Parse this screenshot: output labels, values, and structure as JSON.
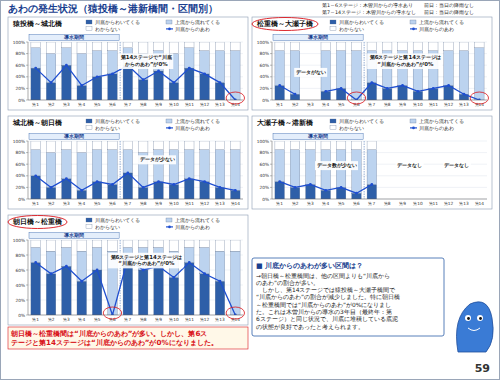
{
  "title": "あわの発生状況（猿投橋～港新橋間・区間別）",
  "legend_note": [
    "第1～6ステージ：木曽川からの導水あり",
    "前日：当日の降雨なし",
    "第7～14ステージ：木曽川からの導水なし",
    "前日：当日の降雨なし"
  ],
  "note": {
    "heading": "■ 川底からのあわが多い区間は？",
    "lines": [
      "→朝日橋～松重橋間は、他の区間よりも“川底から",
      "のあわ”の割合が多い。",
      "　しかし、第14ステージでは猿投橋～大瀬子橋間で",
      "“川底からのあわ”の割合が減少しました。特に朝日橋",
      "～松重橋間では“川底からのあわ”が0%になりまし",
      "た。これは木曽川からの導水の3年目（最終年：第",
      "6ステージ）と同じ状況で、川底に堆積している底泥",
      "の状態が良好であったと考えられます。"
    ]
  },
  "caption": [
    "朝日橋～松重橋間は“川底からのあわ”が多い。しかし、第6ス",
    "テージと第14ステージは“川底からのあわ”が0%になりました。"
  ],
  "page": "59",
  "chart_data": [
    {
      "type": "bar",
      "stacked": true,
      "grid": true,
      "title": "猿投橋～城北橋",
      "period": {
        "label": "導水期間",
        "from": "第1",
        "to": "第6"
      },
      "categories": [
        "第1",
        "第2",
        "第3",
        "第4",
        "第5",
        "第6",
        "第7",
        "第8",
        "第9",
        "第10",
        "第11",
        "第12",
        "第13",
        "第14"
      ],
      "ylim": [
        0,
        100
      ],
      "yticks": [
        {
          "value": 0,
          "label": "0%"
        },
        {
          "value": 20,
          "label": "20%"
        },
        {
          "value": 40,
          "label": "40%"
        },
        {
          "value": 60,
          "label": "60%"
        },
        {
          "value": 80,
          "label": "80%"
        },
        {
          "value": 100,
          "label": "100%"
        }
      ],
      "series": [
        {
          "name": "川底からわいてくる",
          "color": "#2e5fa8",
          "values": [
            55,
            30,
            60,
            25,
            40,
            45,
            60,
            35,
            50,
            30,
            55,
            45,
            30,
            0
          ]
        },
        {
          "name": "上流から流れてくる",
          "color": "#bcd3ef",
          "values": [
            35,
            50,
            30,
            55,
            45,
            40,
            30,
            45,
            35,
            50,
            35,
            40,
            55,
            85
          ]
        },
        {
          "name": "わからない",
          "color": "#ffffff",
          "values": [
            10,
            20,
            10,
            20,
            15,
            15,
            10,
            20,
            15,
            20,
            10,
            15,
            15,
            15
          ]
        },
        {
          "name": "川底からのあわ",
          "type": "line",
          "color": "#1f4fd0",
          "marker": "circle",
          "line_style": "solid",
          "values": [
            55,
            30,
            60,
            25,
            40,
            45,
            60,
            35,
            50,
            30,
            55,
            45,
            30,
            0
          ]
        }
      ],
      "annotations": [
        "第14ステージで“川底\nからのあわ”が0%"
      ]
    },
    {
      "type": "bar",
      "stacked": true,
      "grid": true,
      "title": "松重橋～大瀬子橋",
      "period": {
        "label": "導水期間",
        "from": "第1",
        "to": "第6"
      },
      "categories": [
        "第1",
        "第2",
        "第3",
        "第4",
        "第5",
        "第6",
        "第7",
        "第8",
        "第9",
        "第10",
        "第11",
        "第12",
        "第13",
        "第14"
      ],
      "ylim": [
        0,
        100
      ],
      "yticks": [
        {
          "value": 0,
          "label": "0%"
        },
        {
          "value": 20,
          "label": "20%"
        },
        {
          "value": 40,
          "label": "40%"
        },
        {
          "value": 60,
          "label": "60%"
        },
        {
          "value": 80,
          "label": "80%"
        },
        {
          "value": 100,
          "label": "100%"
        }
      ],
      "series": [
        {
          "name": "川底からわいてくる",
          "color": "#2e5fa8",
          "values": [
            25,
            10,
            null,
            15,
            20,
            0,
            30,
            20,
            25,
            15,
            20,
            25,
            10,
            0
          ]
        },
        {
          "name": "上流から流れてくる",
          "color": "#bcd3ef",
          "values": [
            60,
            75,
            null,
            70,
            65,
            85,
            55,
            65,
            60,
            70,
            65,
            60,
            75,
            90
          ]
        },
        {
          "name": "わからない",
          "color": "#ffffff",
          "values": [
            15,
            15,
            null,
            15,
            15,
            15,
            15,
            15,
            15,
            15,
            15,
            15,
            15,
            10
          ]
        },
        {
          "name": "川底からのあわ",
          "type": "line",
          "color": "#1f4fd0",
          "marker": "circle",
          "line_style": "solid",
          "values": [
            25,
            10,
            null,
            15,
            20,
            0,
            30,
            20,
            25,
            15,
            20,
            25,
            10,
            0
          ]
        }
      ],
      "annotations": [
        "データがない",
        "第6ステージと第14ステージは\n“川底からのあわ”が0%"
      ]
    },
    {
      "type": "bar",
      "stacked": true,
      "grid": true,
      "title": "城北橋～朝日橋",
      "period": {
        "label": "導水期間",
        "from": "第1",
        "to": "第6"
      },
      "categories": [
        "第1",
        "第2",
        "第3",
        "第4",
        "第5",
        "第6",
        "第7",
        "第8",
        "第9",
        "第10",
        "第11",
        "第12",
        "第13",
        "第14"
      ],
      "ylim": [
        0,
        100
      ],
      "yticks": [
        {
          "value": 0,
          "label": "0%"
        },
        {
          "value": 20,
          "label": "20%"
        },
        {
          "value": 40,
          "label": "40%"
        },
        {
          "value": 60,
          "label": "60%"
        },
        {
          "value": 80,
          "label": "80%"
        },
        {
          "value": 100,
          "label": "100%"
        }
      ],
      "series": [
        {
          "name": "川底からわいてくる",
          "color": "#2e5fa8",
          "values": [
            40,
            20,
            35,
            15,
            30,
            25,
            45,
            20,
            30,
            25,
            35,
            30,
            20,
            15
          ]
        },
        {
          "name": "上流から流れてくる",
          "color": "#bcd3ef",
          "values": [
            45,
            60,
            50,
            65,
            55,
            60,
            40,
            60,
            55,
            60,
            50,
            55,
            65,
            70
          ]
        },
        {
          "name": "わからない",
          "color": "#ffffff",
          "values": [
            15,
            20,
            15,
            20,
            15,
            15,
            15,
            20,
            15,
            15,
            15,
            15,
            15,
            15
          ]
        },
        {
          "name": "川底からのあわ",
          "type": "line",
          "color": "#1f4fd0",
          "marker": "circle",
          "line_style": "solid",
          "values": [
            40,
            20,
            35,
            15,
            30,
            25,
            45,
            20,
            30,
            25,
            35,
            30,
            20,
            15
          ]
        }
      ],
      "annotations": [
        "データが少ない"
      ]
    },
    {
      "type": "bar",
      "stacked": true,
      "grid": true,
      "title": "大瀬子橋～港新橋",
      "period": {
        "label": "導水期間",
        "from": "第1",
        "to": "第6"
      },
      "categories": [
        "第1",
        "第2",
        "第3",
        "第4",
        "第5",
        "第6",
        "第7",
        "第8",
        "第9",
        "第10",
        "第11",
        "第12",
        "第13",
        "第14"
      ],
      "ylim": [
        0,
        100
      ],
      "yticks": [
        {
          "value": 0,
          "label": "0%"
        },
        {
          "value": 20,
          "label": "20%"
        },
        {
          "value": 40,
          "label": "40%"
        },
        {
          "value": 60,
          "label": "60%"
        },
        {
          "value": 80,
          "label": "80%"
        },
        {
          "value": 100,
          "label": "100%"
        }
      ],
      "series": [
        {
          "name": "川底からわいてくる",
          "color": "#2e5fa8",
          "values": [
            30,
            20,
            25,
            15,
            20,
            10,
            25,
            null,
            null,
            null,
            null,
            null,
            null,
            null
          ]
        },
        {
          "name": "上流から流れてくる",
          "color": "#bcd3ef",
          "values": [
            55,
            65,
            60,
            70,
            65,
            75,
            60,
            null,
            null,
            null,
            null,
            null,
            null,
            null
          ]
        },
        {
          "name": "わからない",
          "color": "#ffffff",
          "values": [
            15,
            15,
            15,
            15,
            15,
            15,
            15,
            null,
            null,
            null,
            null,
            null,
            null,
            null
          ]
        },
        {
          "name": "川底からのあわ",
          "type": "line",
          "color": "#1f4fd0",
          "marker": "circle",
          "line_style": "solid",
          "values": [
            30,
            20,
            25,
            15,
            20,
            10,
            25,
            null,
            null,
            null,
            null,
            null,
            null,
            null
          ]
        }
      ],
      "annotations": [
        "データ数が少ない",
        "データなし",
        "データなし"
      ]
    },
    {
      "type": "bar",
      "stacked": true,
      "grid": true,
      "title": "朝日橋～松重橋",
      "period": {
        "label": "導水期間",
        "from": "第1",
        "to": "第6"
      },
      "categories": [
        "第1",
        "第2",
        "第3",
        "第4",
        "第5",
        "第6",
        "第7",
        "第8",
        "第9",
        "第10",
        "第11",
        "第12",
        "第13",
        "第14"
      ],
      "ylim": [
        0,
        100
      ],
      "yticks": [
        {
          "value": 0,
          "label": "0%"
        },
        {
          "value": 20,
          "label": "20%"
        },
        {
          "value": 40,
          "label": "40%"
        },
        {
          "value": 60,
          "label": "60%"
        },
        {
          "value": 80,
          "label": "80%"
        },
        {
          "value": 100,
          "label": "100%"
        }
      ],
      "series": [
        {
          "name": "川底からわいてくる",
          "color": "#2e5fa8",
          "values": [
            70,
            55,
            65,
            45,
            60,
            0,
            75,
            60,
            65,
            50,
            70,
            55,
            45,
            0
          ]
        },
        {
          "name": "上流から流れてくる",
          "color": "#bcd3ef",
          "values": [
            20,
            30,
            25,
            40,
            30,
            85,
            15,
            30,
            25,
            35,
            20,
            35,
            40,
            85
          ]
        },
        {
          "name": "わからない",
          "color": "#ffffff",
          "values": [
            10,
            15,
            10,
            15,
            10,
            15,
            10,
            10,
            10,
            15,
            10,
            10,
            15,
            15
          ]
        },
        {
          "name": "川底からのあわ",
          "type": "line",
          "color": "#1f4fd0",
          "marker": "circle",
          "line_style": "solid",
          "values": [
            70,
            55,
            65,
            45,
            60,
            0,
            75,
            60,
            65,
            50,
            70,
            55,
            45,
            0
          ]
        }
      ],
      "annotations": [
        "第6ステージと第14ステージは\n“川底からのあわ”が0%"
      ]
    }
  ]
}
